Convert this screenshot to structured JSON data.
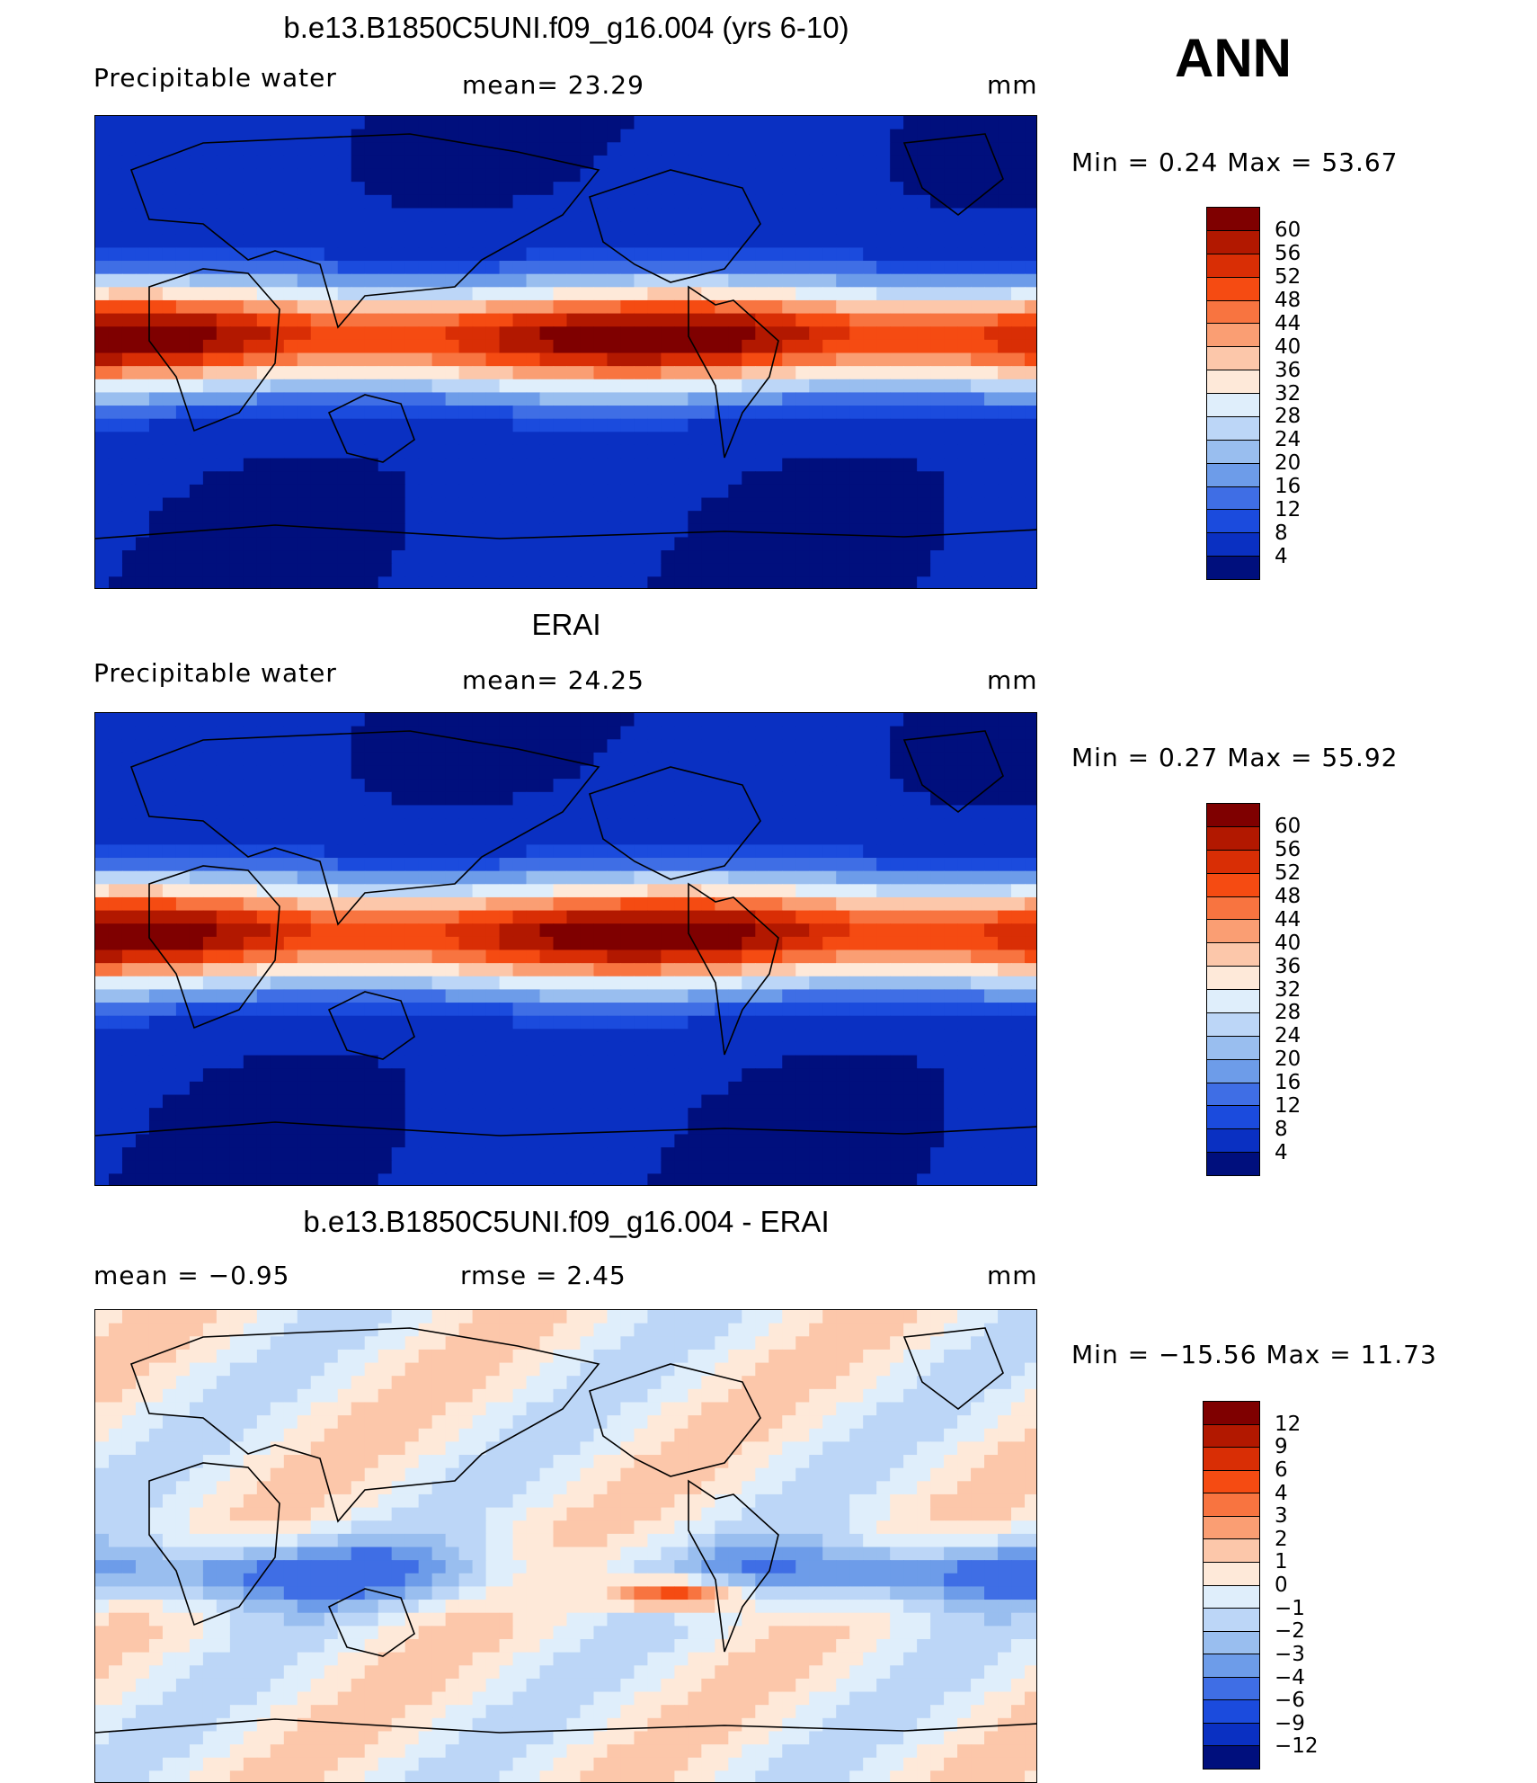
{
  "season": "ANN",
  "panels": [
    {
      "title": "b.e13.B1850C5UNI.f09_g16.004 (yrs 6-10)",
      "left_label": "Precipitable  water",
      "mid_label": "mean=   23.29",
      "units": "mm",
      "minmax": "Min  =     0.24  Max  =    53.67",
      "type": "abs",
      "colorbar": {
        "labels": [
          "60",
          "56",
          "52",
          "48",
          "44",
          "40",
          "36",
          "32",
          "28",
          "24",
          "20",
          "16",
          "12",
          "8",
          "4"
        ],
        "colors": [
          "#7f0000",
          "#b21800",
          "#d92e05",
          "#f54b12",
          "#f87440",
          "#fa9e73",
          "#fcc7aa",
          "#fee9d9",
          "#dfeefb",
          "#bcd6f7",
          "#99beef",
          "#6d9ce9",
          "#3f6ee5",
          "#1b4bdd",
          "#0a30c2",
          "#000f7d"
        ]
      }
    },
    {
      "title": "ERAI",
      "left_label": "Precipitable  water",
      "mid_label": "mean=   24.25",
      "units": "mm",
      "minmax": "Min  =     0.27  Max  =    55.92",
      "type": "abs",
      "colorbar": {
        "labels": [
          "60",
          "56",
          "52",
          "48",
          "44",
          "40",
          "36",
          "32",
          "28",
          "24",
          "20",
          "16",
          "12",
          "8",
          "4"
        ],
        "colors": [
          "#7f0000",
          "#b21800",
          "#d92e05",
          "#f54b12",
          "#f87440",
          "#fa9e73",
          "#fcc7aa",
          "#fee9d9",
          "#dfeefb",
          "#bcd6f7",
          "#99beef",
          "#6d9ce9",
          "#3f6ee5",
          "#1b4bdd",
          "#0a30c2",
          "#000f7d"
        ]
      }
    },
    {
      "title": "b.e13.B1850C5UNI.f09_g16.004 - ERAI",
      "left_label": "mean  =    −0.95",
      "mid_label": "rmse  =     2.45",
      "units": "mm",
      "minmax": "Min  = −15.56  Max  =    11.73",
      "type": "diff",
      "colorbar": {
        "labels": [
          "12",
          "9",
          "6",
          "4",
          "3",
          "2",
          "1",
          "0",
          "−1",
          "−2",
          "−3",
          "−4",
          "−6",
          "−9",
          "−12"
        ],
        "colors": [
          "#7f0000",
          "#b21800",
          "#d92e05",
          "#f54b12",
          "#f87440",
          "#fa9e73",
          "#fcc7aa",
          "#fee9d9",
          "#dfeefb",
          "#bcd6f7",
          "#99beef",
          "#6d9ce9",
          "#3f6ee5",
          "#1b4bdd",
          "#0a30c2",
          "#000f7d"
        ]
      }
    }
  ]
}
